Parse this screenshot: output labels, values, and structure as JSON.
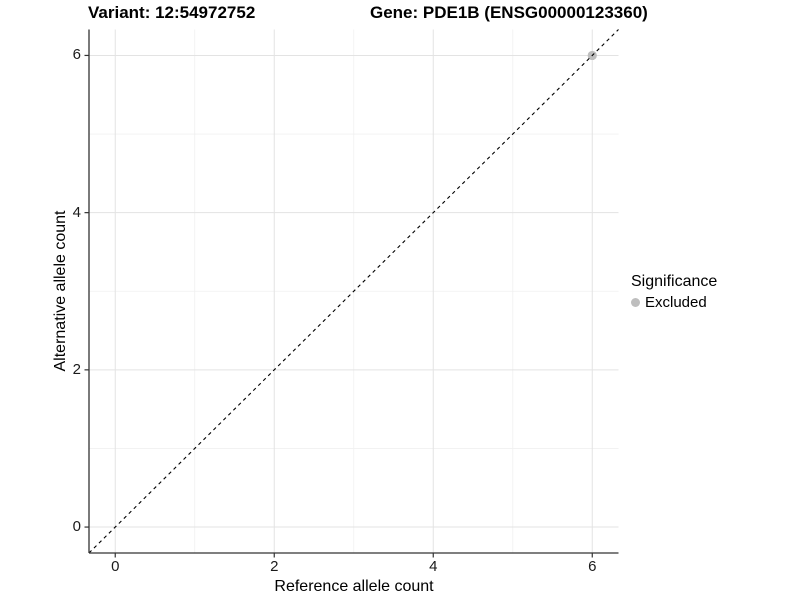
{
  "header": {
    "title_left": "Variant: 12:54972752",
    "title_right": "Gene: PDE1B (ENSG00000123360)"
  },
  "chart_data": {
    "type": "scatter",
    "xlabel": "Reference allele count",
    "ylabel": "Alternative allele count",
    "xlim": [
      -0.33,
      6.33
    ],
    "ylim": [
      -0.33,
      6.33
    ],
    "x_ticks": [
      0,
      2,
      4,
      6
    ],
    "y_ticks": [
      0,
      2,
      4,
      6
    ],
    "x_minor_ticks": [
      1,
      3,
      5
    ],
    "y_minor_ticks": [
      1,
      3,
      5
    ],
    "grid": true,
    "series": [
      {
        "name": "Excluded",
        "color": "#bebebe",
        "points": [
          [
            6,
            6
          ]
        ]
      }
    ],
    "reference_line": {
      "type": "identity",
      "from": [
        -0.33,
        -0.33
      ],
      "to": [
        6.33,
        6.33
      ],
      "style": "dashed",
      "color": "#000000"
    },
    "legend": {
      "title": "Significance",
      "position": "right",
      "entries": [
        {
          "label": "Excluded",
          "color": "#bebebe",
          "marker": "circle"
        }
      ]
    }
  },
  "colors": {
    "background": "#ffffff",
    "grid_major": "#e3e3e3",
    "grid_minor": "#f0f0f0",
    "axis_line": "#333333",
    "point": "#bebebe",
    "text": "#000000"
  }
}
